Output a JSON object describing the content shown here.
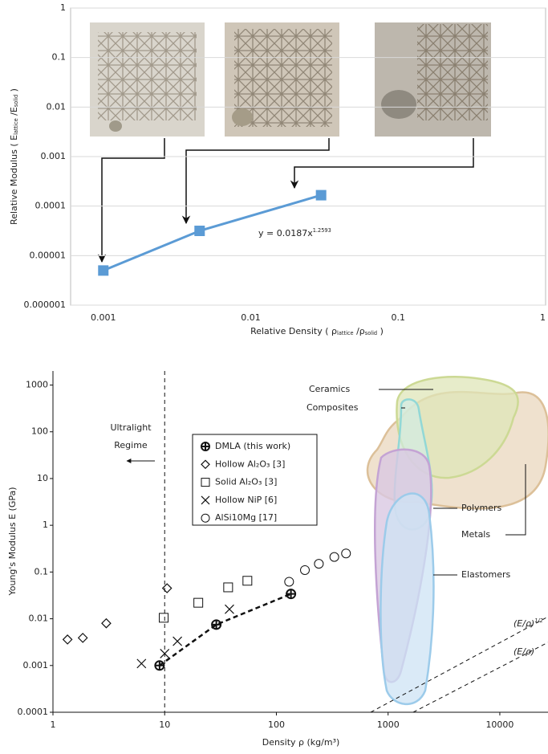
{
  "chart_data": [
    {
      "type": "line",
      "log_x": true,
      "log_y": true,
      "grid": true,
      "xlim": [
        0.0006,
        1
      ],
      "xticks": [
        0.001,
        0.01,
        0.1,
        1
      ],
      "ylim": [
        1e-06,
        1
      ],
      "yticks": [
        1e-06,
        1e-05,
        0.0001,
        0.001,
        0.01,
        0.1,
        1
      ],
      "xlabel_parts": [
        {
          "text": "Relative Density ( ρ"
        },
        {
          "sub": "lattice"
        },
        {
          "text": " /ρ"
        },
        {
          "sub": "solid"
        },
        {
          "text": " )"
        }
      ],
      "ylabel_parts": [
        {
          "text": "Relative Modulus ( E"
        },
        {
          "sub": "lattice"
        },
        {
          "text": " /E"
        },
        {
          "sub": "solid"
        },
        {
          "text": " )"
        }
      ],
      "annotation_parts": [
        {
          "text": "y = 0.0187x"
        },
        {
          "sup": "1.2593"
        }
      ],
      "series": [
        {
          "color": "#5b9bd5",
          "marker": "square",
          "x": [
            0.001,
            0.0045,
            0.03
          ],
          "values": [
            5e-06,
            3.16e-05,
            0.000166
          ]
        }
      ]
    },
    {
      "type": "scatter",
      "log_x": true,
      "log_y": true,
      "grid": false,
      "xlim": [
        1,
        27000
      ],
      "xticks": [
        1,
        10,
        100,
        1000,
        10000
      ],
      "ylim": [
        0.0001,
        2000
      ],
      "yticks": [
        0.0001,
        0.001,
        0.01,
        0.1,
        1,
        10,
        100,
        1000
      ],
      "xlabel": "Density ρ (kg/m³)",
      "ylabel": "Young's Modulus E (GPa)",
      "vline": 10,
      "vline_label": [
        "Ultralight",
        "Regime"
      ],
      "regions": [
        "Ceramics",
        "Composites",
        "Polymers",
        "Metals",
        "Elastomers"
      ],
      "guides": [
        [
          {
            "text": "(E/ρ)"
          },
          {
            "sup": "1/2"
          }
        ],
        [
          {
            "text": "(E/ρ)"
          }
        ]
      ],
      "series": [
        {
          "name": "DMLA (this work)",
          "marker": "plus-circle",
          "color": "#111",
          "line_style": "dashed",
          "x": [
            9,
            29,
            135
          ],
          "values": [
            0.001,
            0.0075,
            0.034
          ]
        },
        {
          "name": "Hollow Al₂O₃ [3]",
          "marker": "diamond",
          "color": "#111",
          "x": [
            1.35,
            1.85,
            3,
            10.5
          ],
          "values": [
            0.0036,
            0.0039,
            0.008,
            0.045
          ]
        },
        {
          "name": "Solid Al₂O₃ [3]",
          "marker": "square",
          "color": "#111",
          "x": [
            9.8,
            20,
            37,
            55
          ],
          "values": [
            0.0105,
            0.022,
            0.047,
            0.065
          ]
        },
        {
          "name": "Hollow NiP [6]",
          "marker": "x",
          "color": "#111",
          "x": [
            6.2,
            10,
            13,
            38
          ],
          "values": [
            0.0011,
            0.0018,
            0.0033,
            0.016
          ]
        },
        {
          "name": "AlSi10Mg [17]",
          "marker": "circle",
          "color": "#111",
          "x": [
            130,
            180,
            240,
            330,
            420
          ],
          "values": [
            0.062,
            0.11,
            0.15,
            0.21,
            0.25
          ]
        }
      ]
    }
  ]
}
